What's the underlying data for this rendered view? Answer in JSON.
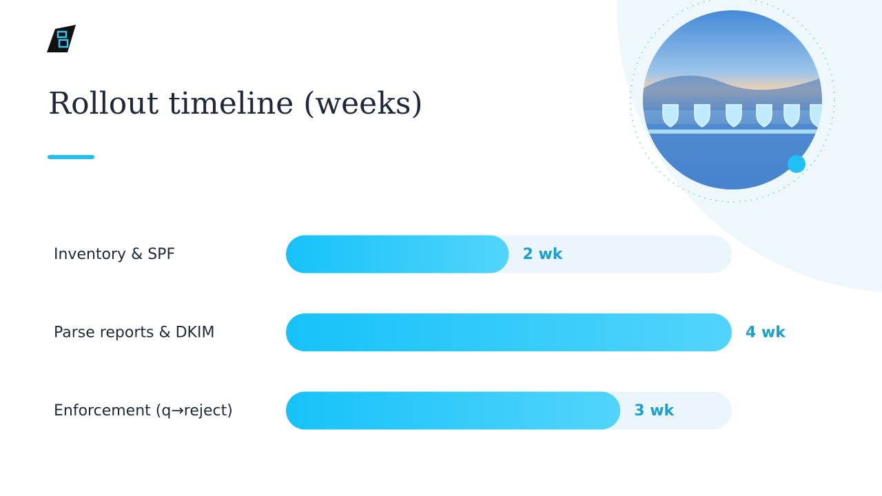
{
  "chart_data": {
    "type": "bar",
    "orientation": "horizontal",
    "title": "Rollout timeline (weeks)",
    "categories": [
      "Inventory & SPF",
      "Parse reports & DKIM",
      "Enforcement (q→reject)"
    ],
    "values": [
      2,
      4,
      3
    ],
    "value_labels": [
      "2 wk",
      "4 wk",
      "3 wk"
    ],
    "color": "#1ec0f5",
    "xlim": [
      0,
      4
    ]
  }
}
